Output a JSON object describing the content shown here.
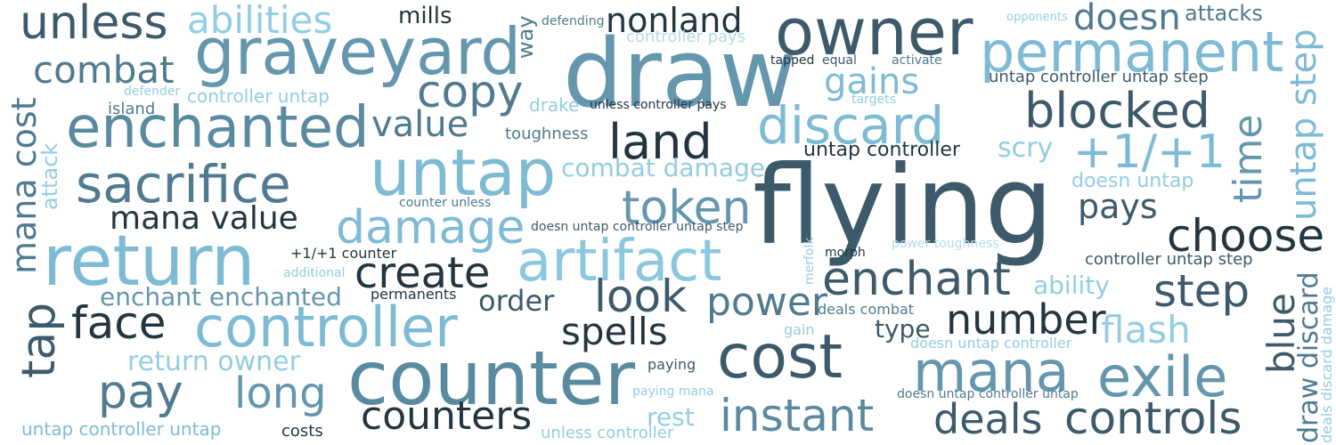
{
  "words": {
    "flying": "flying",
    "draw": "draw",
    "counter": "counter",
    "owner": "owner",
    "return": "return",
    "graveyard": "graveyard",
    "untap": "untap",
    "artifact": "artifact",
    "permanent": "permanent",
    "enchanted": "enchanted",
    "controller": "controller",
    "cost": "cost",
    "sacrifice": "sacrifice",
    "discard": "discard",
    "mana": "mana",
    "exile": "exile",
    "controls": "controls",
    "instant": "instant",
    "land": "land",
    "token": "token",
    "damage": "damage",
    "choose": "choose",
    "enchant": "enchant",
    "counters": "counters",
    "create": "create",
    "blocked": "blocked",
    "unless": "unless",
    "copy": "copy",
    "face": "face",
    "pay": "pay",
    "look": "look",
    "long": "long",
    "step": "step",
    "number": "number",
    "deals": "deals",
    "combat": "combat",
    "plus_one": "+1/+1",
    "spells": "spells",
    "power": "power",
    "abilities": "abilities",
    "mana_value": "mana value",
    "value": "value",
    "doesn": "doesn",
    "flash": "flash",
    "nonland": "nonland",
    "gains": "gains",
    "pays": "pays",
    "blue": "blue",
    "time": "time",
    "tap": "tap",
    "mana_cost": "mana cost",
    "untap_step": "untap step",
    "return_owner": "return owner",
    "enchant_enchanted": "enchant enchanted",
    "order": "order",
    "combat_damage": "combat damage",
    "ability": "ability",
    "rest": "rest",
    "type": "type",
    "scry": "scry",
    "mills": "mills",
    "attacks": "attacks",
    "way": "way",
    "attack": "attack",
    "draw_discard": "draw discard",
    "untap_controller": "untap controller",
    "doesn_untap": "doesn untap",
    "untap_controller_untap_step": "untap controller untap step",
    "controller_untap_step": "controller untap step",
    "untap_controller_untap": "untap controller untap",
    "unless_controller": "unless controller",
    "doesn_untap_controller": "doesn untap controller",
    "doesn_untap_controller_untap": "doesn untap controller untap",
    "doesn_untap_controller_untap_step": "doesn untap controller untap step",
    "controller_pays": "controller pays",
    "unless_controller_pays": "unless controller pays",
    "controller_untap": "controller untap",
    "toughness": "toughness",
    "drake": "drake",
    "island": "island",
    "defender": "defender",
    "defending": "defending",
    "opponents": "opponents",
    "tapped": "tapped",
    "equal": "equal",
    "activate": "activate",
    "targets": "targets",
    "counter_unless": "counter unless",
    "plus_one_counter": "+1/+1 counter",
    "additional": "additional",
    "permanents": "permanents",
    "merfolk": "merfolk",
    "morph": "morph",
    "power_toughness": "power toughness",
    "deals_combat": "deals combat",
    "gain": "gain",
    "paying": "paying",
    "paying_mana": "paying mana",
    "costs": "costs",
    "deals_discard_damage": "deals discard damage"
  },
  "palette": {
    "background": "#ffffff",
    "darkest": "#233640",
    "dark": "#3d5a6b",
    "mid": "#4f7a8f",
    "steel": "#6496ad",
    "light": "#7dbbd5",
    "pale": "#93cde3"
  }
}
